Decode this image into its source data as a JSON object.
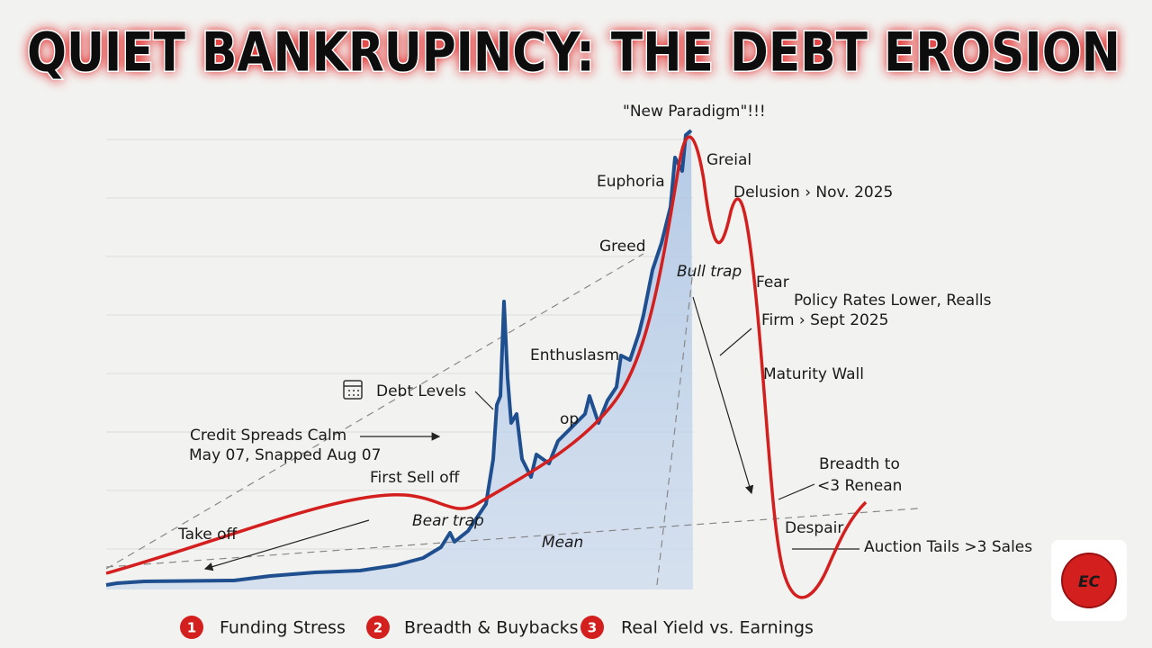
{
  "title": "QUIET BANKRUPINCY: THE DEBT EROSION",
  "annotations": {
    "new_paradigm": "\"New Paradigm\"!!!",
    "greial": "Greial",
    "euphoria": "Euphoria",
    "delusion": "Delusion › Nov. 2025",
    "greed": "Greed",
    "bull_trap": "Bull trap",
    "fear": "Fear",
    "policy_rates": "Policy Rates Lower, Realls",
    "firm": "Firm › Sept 2025",
    "enthusiasm": "Enthuslasm",
    "maturity_wall": "Maturity Wall",
    "debt_levels": "Debt Levels",
    "credit_spreads": "Credit Spreads Calm",
    "snapped": "May 07, Snapped Aug 07",
    "first_sell_off": "First Sell off",
    "op": "op",
    "bear_trap": "Bear trap",
    "take_off": "Take off",
    "mean": "Mean",
    "breadth_to": "Breadth to",
    "renean": "<3 Renean",
    "despair": "Despair",
    "auction_tails": "Auction Tails >3 Sales"
  },
  "legend": [
    {
      "number": "1",
      "label": "Funding Stress"
    },
    {
      "number": "2",
      "label": "Breadth & Buybacks"
    },
    {
      "number": "3",
      "label": "Real Yield vs. Earnings"
    }
  ],
  "logo": "EC"
}
